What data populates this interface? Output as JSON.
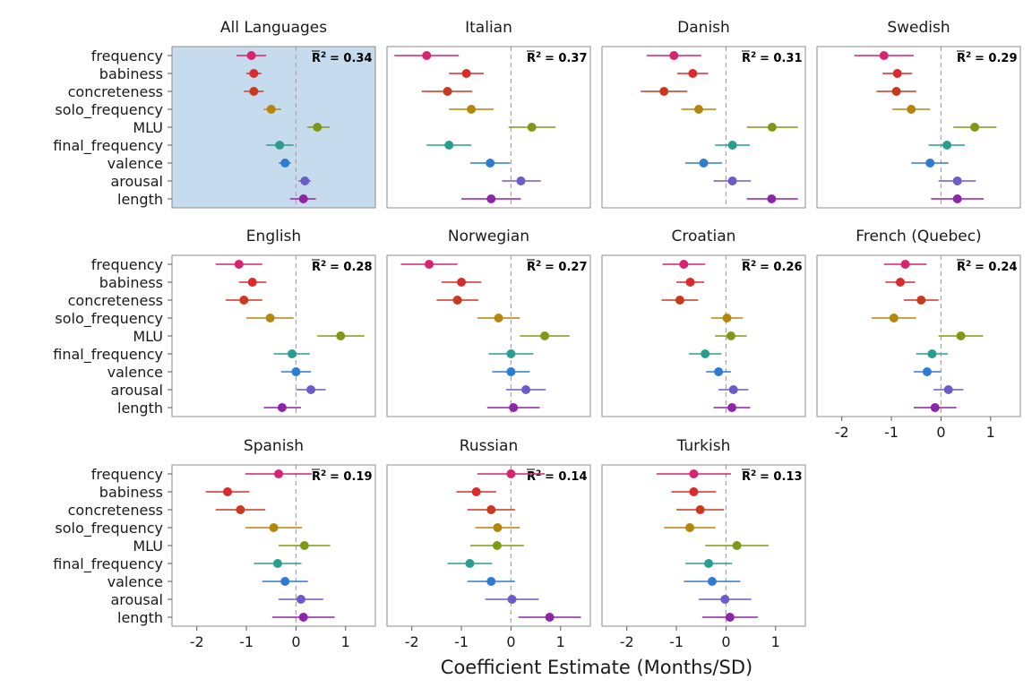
{
  "chart_data": {
    "type": "scatter",
    "xlabel": "Coefficient Estimate (Months/SD)",
    "ylabel": "",
    "xlim": [
      -2.5,
      1.6
    ],
    "x_ticks": [
      "-2",
      "-1",
      "0",
      "1"
    ],
    "x_tick_values": [
      -2,
      -1,
      0,
      1
    ],
    "reference_line_x": 0,
    "predictors": [
      "frequency",
      "babiness",
      "concreteness",
      "solo_frequency",
      "MLU",
      "final_frequency",
      "valence",
      "arousal",
      "length"
    ],
    "colors": {
      "frequency": "#d6246e",
      "babiness": "#d92b2b",
      "concreteness": "#c9391e",
      "solo_frequency": "#b6860a",
      "MLU": "#7c9a17",
      "final_frequency": "#2a9e8e",
      "valence": "#2f7bd2",
      "arousal": "#6a5cc9",
      "length": "#8e24a8"
    },
    "highlight_color": "#c6dcee",
    "panels": [
      {
        "title": "All Languages",
        "r2": "= 0.34",
        "highlight": true,
        "estimates": [
          -0.9,
          -0.85,
          -0.85,
          -0.5,
          0.43,
          -0.33,
          -0.22,
          0.18,
          0.15
        ],
        "lower": [
          -1.2,
          -1.0,
          -1.05,
          -0.65,
          0.23,
          -0.6,
          -0.35,
          0.05,
          -0.12
        ],
        "upper": [
          -0.6,
          -0.7,
          -0.65,
          -0.3,
          0.68,
          -0.05,
          -0.1,
          0.3,
          0.4
        ]
      },
      {
        "title": "Italian",
        "r2": "= 0.37",
        "highlight": false,
        "estimates": [
          -1.7,
          -0.9,
          -1.28,
          -0.8,
          0.42,
          -1.25,
          -0.42,
          0.2,
          -0.4
        ],
        "lower": [
          -2.35,
          -1.25,
          -1.8,
          -1.25,
          -0.05,
          -1.7,
          -0.82,
          -0.18,
          -1.0
        ],
        "upper": [
          -1.05,
          -0.55,
          -0.78,
          -0.35,
          0.9,
          -0.8,
          -0.02,
          0.6,
          0.2
        ]
      },
      {
        "title": "Danish",
        "r2": "= 0.31",
        "highlight": false,
        "estimates": [
          -1.05,
          -0.67,
          -1.25,
          -0.55,
          0.93,
          0.13,
          -0.45,
          0.13,
          0.92
        ],
        "lower": [
          -1.6,
          -0.98,
          -1.72,
          -0.9,
          0.42,
          -0.22,
          -0.82,
          -0.25,
          0.42
        ],
        "upper": [
          -0.5,
          -0.36,
          -0.78,
          -0.2,
          1.45,
          0.48,
          -0.08,
          0.5,
          1.45
        ]
      },
      {
        "title": "Swedish",
        "r2": "= 0.29",
        "highlight": false,
        "estimates": [
          -1.15,
          -0.88,
          -0.9,
          -0.6,
          0.68,
          0.12,
          -0.22,
          0.33,
          0.33
        ],
        "lower": [
          -1.75,
          -1.18,
          -1.3,
          -0.98,
          0.25,
          -0.25,
          -0.6,
          -0.05,
          -0.2
        ],
        "upper": [
          -0.55,
          -0.58,
          -0.5,
          -0.22,
          1.12,
          0.48,
          0.15,
          0.7,
          0.86
        ]
      },
      {
        "title": "English",
        "r2": "= 0.28",
        "highlight": false,
        "estimates": [
          -1.15,
          -0.88,
          -1.05,
          -0.52,
          0.9,
          -0.08,
          0.0,
          0.3,
          -0.28
        ],
        "lower": [
          -1.62,
          -1.15,
          -1.42,
          -1.0,
          0.43,
          -0.45,
          -0.3,
          0.0,
          -0.65
        ],
        "upper": [
          -0.68,
          -0.6,
          -0.68,
          -0.05,
          1.38,
          0.28,
          0.3,
          0.6,
          0.1
        ]
      },
      {
        "title": "Norwegian",
        "r2": "= 0.27",
        "highlight": false,
        "estimates": [
          -1.65,
          -1.0,
          -1.08,
          -0.25,
          0.68,
          0.0,
          0.0,
          0.3,
          0.05
        ],
        "lower": [
          -2.22,
          -1.4,
          -1.5,
          -0.68,
          0.18,
          -0.45,
          -0.38,
          -0.1,
          -0.48
        ],
        "upper": [
          -1.08,
          -0.6,
          -0.66,
          0.18,
          1.18,
          0.45,
          0.38,
          0.7,
          0.58
        ]
      },
      {
        "title": "Croatian",
        "r2": "= 0.26",
        "highlight": false,
        "estimates": [
          -0.85,
          -0.72,
          -0.93,
          0.02,
          0.1,
          -0.42,
          -0.15,
          0.15,
          0.12
        ],
        "lower": [
          -1.28,
          -1.0,
          -1.3,
          -0.3,
          -0.22,
          -0.75,
          -0.4,
          -0.15,
          -0.25
        ],
        "upper": [
          -0.42,
          -0.44,
          -0.56,
          0.34,
          0.42,
          -0.09,
          0.1,
          0.45,
          0.49
        ]
      },
      {
        "title": "French (Quebec)",
        "r2": "= 0.24",
        "highlight": false,
        "estimates": [
          -0.72,
          -0.82,
          -0.4,
          -0.95,
          0.4,
          -0.18,
          -0.28,
          0.15,
          -0.12
        ],
        "lower": [
          -1.15,
          -1.12,
          -0.75,
          -1.4,
          -0.05,
          -0.5,
          -0.55,
          -0.15,
          -0.55
        ],
        "upper": [
          -0.29,
          -0.52,
          -0.05,
          -0.5,
          0.85,
          0.14,
          -0.01,
          0.45,
          0.31
        ]
      },
      {
        "title": "Spanish",
        "r2": "= 0.19",
        "highlight": false,
        "estimates": [
          -0.35,
          -1.38,
          -1.12,
          -0.45,
          0.17,
          -0.37,
          -0.22,
          0.1,
          0.15
        ],
        "lower": [
          -1.02,
          -1.82,
          -1.62,
          -1.02,
          -0.35,
          -0.85,
          -0.68,
          -0.35,
          -0.48
        ],
        "upper": [
          0.32,
          -0.94,
          -0.62,
          0.12,
          0.69,
          0.11,
          0.24,
          0.55,
          0.78
        ]
      },
      {
        "title": "Russian",
        "r2": "= 0.14",
        "highlight": false,
        "estimates": [
          0.0,
          -0.7,
          -0.4,
          -0.27,
          -0.28,
          -0.83,
          -0.4,
          0.02,
          0.78
        ],
        "lower": [
          -0.68,
          -1.1,
          -0.88,
          -0.72,
          -0.82,
          -1.28,
          -0.88,
          -0.52,
          0.15
        ],
        "upper": [
          0.68,
          -0.3,
          0.08,
          0.18,
          0.26,
          -0.38,
          0.08,
          0.56,
          1.41
        ]
      },
      {
        "title": "Turkish",
        "r2": "= 0.13",
        "highlight": false,
        "estimates": [
          -0.65,
          -0.65,
          -0.52,
          -0.73,
          0.22,
          -0.35,
          -0.28,
          -0.02,
          0.08
        ],
        "lower": [
          -1.4,
          -1.1,
          -1.0,
          -1.25,
          -0.42,
          -0.82,
          -0.85,
          -0.55,
          -0.48
        ],
        "upper": [
          0.1,
          -0.2,
          -0.04,
          -0.21,
          0.86,
          0.12,
          0.29,
          0.51,
          0.64
        ]
      }
    ]
  }
}
